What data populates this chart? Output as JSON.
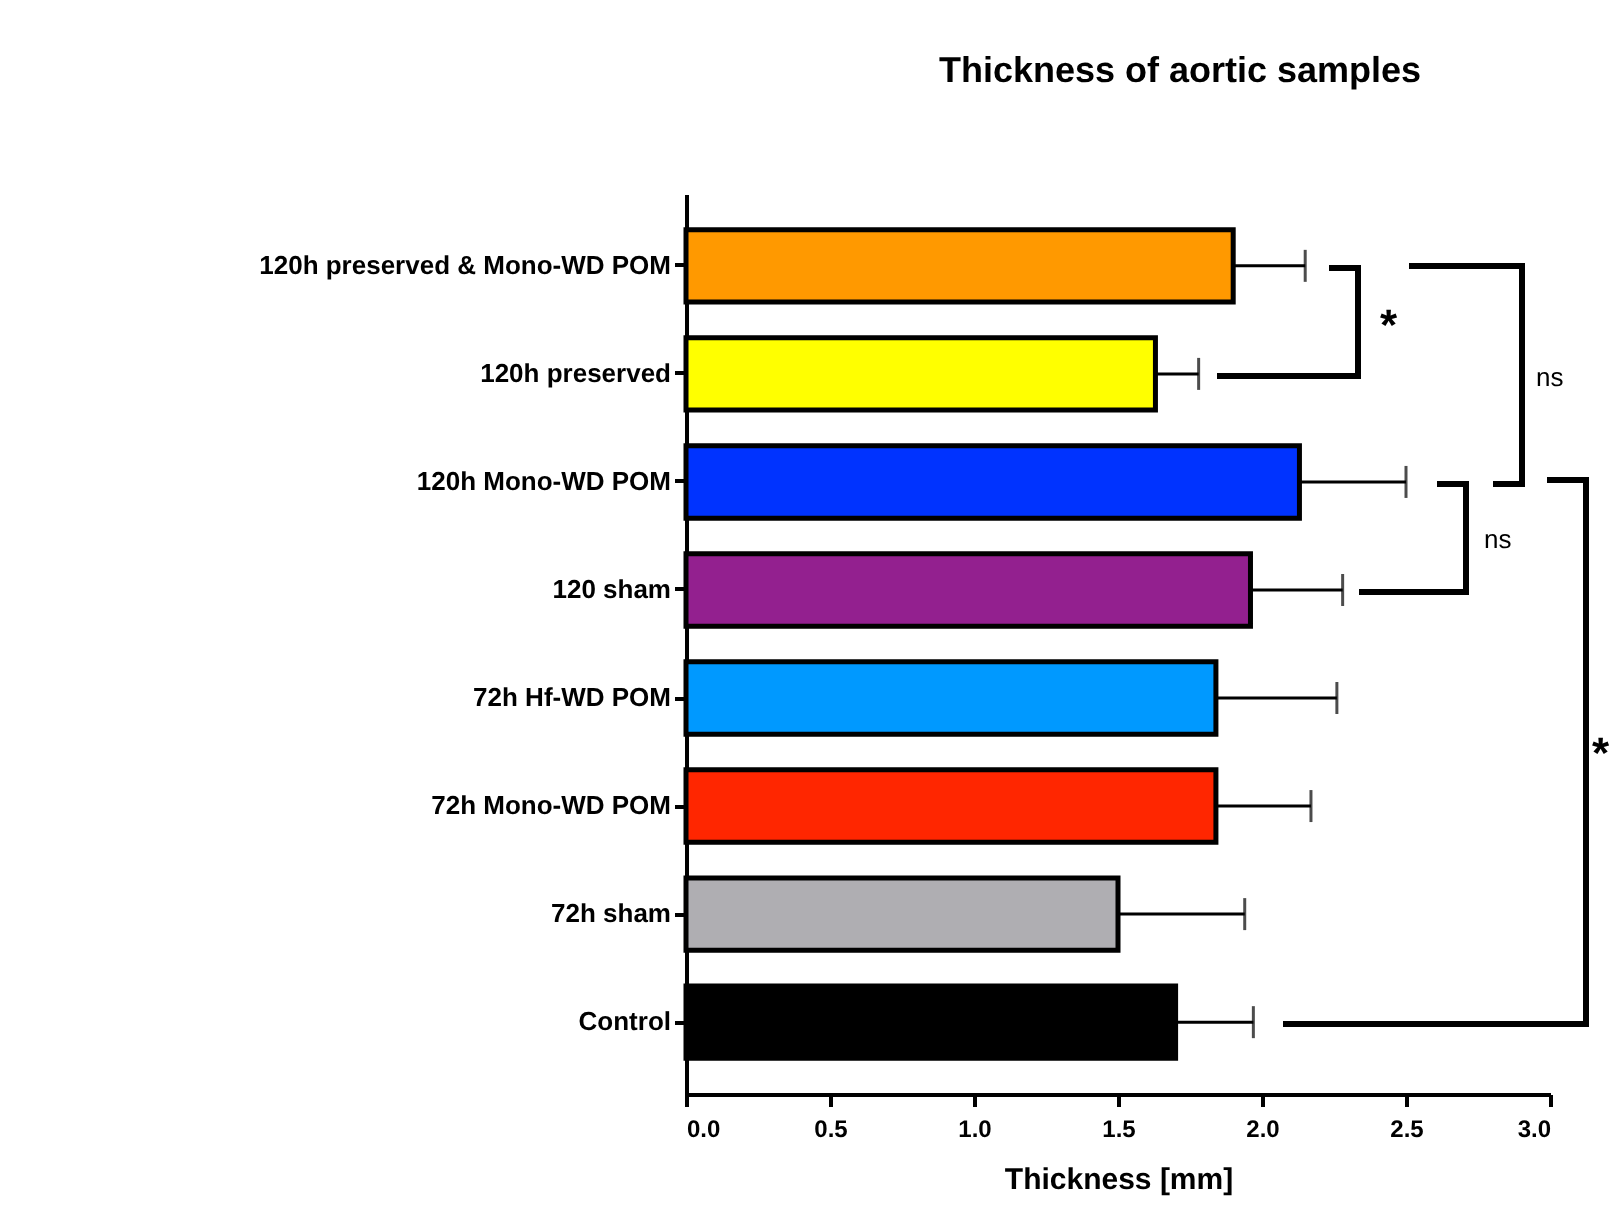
{
  "chart_data": {
    "type": "bar",
    "orientation": "horizontal",
    "title": "Thickness of aortic samples",
    "xlabel": "Thickness [mm]",
    "categories": [
      "120h preserved & Mono-WD POM",
      "120h preserved",
      "120h Mono-WD POM",
      "120 sham",
      "72h Hf-WD POM",
      "72h Mono-WD POM",
      "72h sham",
      "Control"
    ],
    "values": [
      1.9,
      1.63,
      2.13,
      1.96,
      1.84,
      1.84,
      1.5,
      1.7
    ],
    "colors": [
      "#ff9900",
      "#ffff00",
      "#0033ff",
      "#93208f",
      "#0099ff",
      "#ff2600",
      "#afaeb2",
      "#000000"
    ],
    "errors": [
      [
        1.9,
        2.15
      ],
      [
        1.63,
        1.78
      ],
      [
        2.13,
        2.5
      ],
      [
        1.96,
        2.28
      ],
      [
        1.84,
        2.26
      ],
      [
        1.84,
        2.17
      ],
      [
        1.5,
        1.94
      ],
      [
        1.7,
        1.97
      ]
    ],
    "xlim": [
      0,
      3
    ],
    "xticks": [
      {
        "value": 0,
        "label": "0.0"
      },
      0.5,
      {
        "value": 1,
        "label": "1.0"
      },
      1.5,
      {
        "value": 2,
        "label": "2.0"
      },
      2.5,
      {
        "value": 3,
        "label": "3.0"
      }
    ],
    "grid": false,
    "annotations": [
      "*",
      "ns",
      "ns",
      "*"
    ]
  }
}
